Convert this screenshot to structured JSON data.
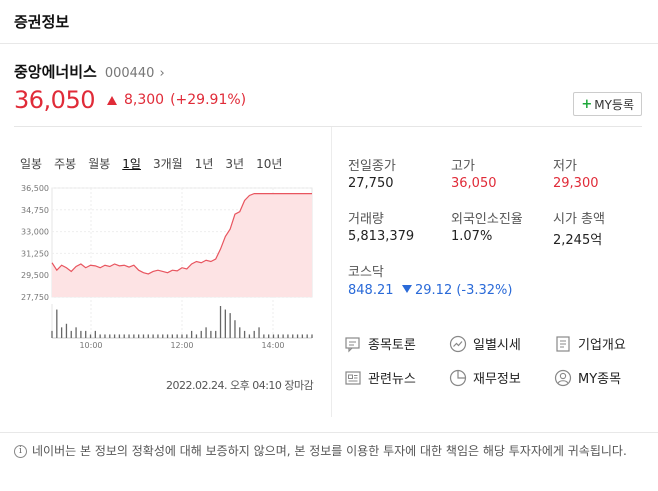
{
  "header": {
    "title": "증권정보"
  },
  "stock": {
    "name": "중앙에너비스",
    "code": "000440",
    "price": "36,050",
    "change": "8,300",
    "change_pct": "(+29.91%)",
    "color_up": "#e02b38"
  },
  "my_button": {
    "label": "MY등록"
  },
  "chart_tabs": [
    "일봉",
    "주봉",
    "월봉",
    "1일",
    "3개월",
    "1년",
    "3년",
    "10년"
  ],
  "chart_active_tab": "1일",
  "chart_data": {
    "type": "area",
    "y_tick_labels": [
      "36,500",
      "34,750",
      "33,000",
      "31,250",
      "29,500",
      "27,750"
    ],
    "ylim": [
      27750,
      36500
    ],
    "x_tick_labels": [
      "10:00",
      "12:00",
      "14:00"
    ],
    "series": [
      {
        "values": [
          30500,
          29900,
          30300,
          30100,
          29800,
          30200,
          30400,
          30100,
          30300,
          30250,
          30100,
          30300,
          30200,
          30400,
          30250,
          30300,
          30150,
          30300,
          29900,
          29700,
          29600,
          29800,
          29900,
          29800,
          29700,
          29900,
          29850,
          30100,
          30000,
          30400,
          30600,
          30500,
          30700,
          30600,
          30800,
          31600,
          32600,
          33200,
          34400,
          34600,
          35500,
          35900,
          36050,
          36050,
          36050,
          36050,
          36050,
          36050,
          36050,
          36050,
          36050,
          36050,
          36050,
          36050,
          36050
        ]
      }
    ],
    "volume": [
      2,
      8,
      3,
      4,
      2,
      3,
      2,
      2,
      1,
      2,
      1,
      1,
      1,
      1,
      1,
      1,
      1,
      1,
      1,
      1,
      1,
      1,
      1,
      1,
      1,
      1,
      1,
      1,
      1,
      2,
      1,
      2,
      3,
      2,
      2,
      9,
      8,
      7,
      5,
      3,
      2,
      1,
      2,
      3,
      1,
      1,
      1,
      1,
      1,
      1,
      1,
      1,
      1,
      1,
      1
    ],
    "line_color": "#e8555f",
    "fill_color": "#fde3e4",
    "prev_close": 27750
  },
  "chart_time": "2022.02.24. 오후 04:10 장마감",
  "info": {
    "prev_close_label": "전일종가",
    "prev_close": "27,750",
    "high_label": "고가",
    "high": "36,050",
    "low_label": "저가",
    "low": "29,300",
    "volume_label": "거래량",
    "volume": "5,813,379",
    "foreign_label": "외국인소진율",
    "foreign": "1.07%",
    "mcap_label": "시가 총액",
    "mcap": "2,245억",
    "index_label": "코스닥",
    "index_value": "848.21",
    "index_change": "29.12 (-3.32%)",
    "color_down": "#2a6ad8"
  },
  "links": {
    "discussion": "종목토론",
    "daily": "일별시세",
    "company": "기업개요",
    "news": "관련뉴스",
    "finance": "재무정보",
    "my": "MY종목"
  },
  "notice": "네이버는 본 정보의 정확성에 대해 보증하지 않으며, 본 정보를 이용한 투자에 대한 책임은 해당 투자자에게 귀속됩니다."
}
